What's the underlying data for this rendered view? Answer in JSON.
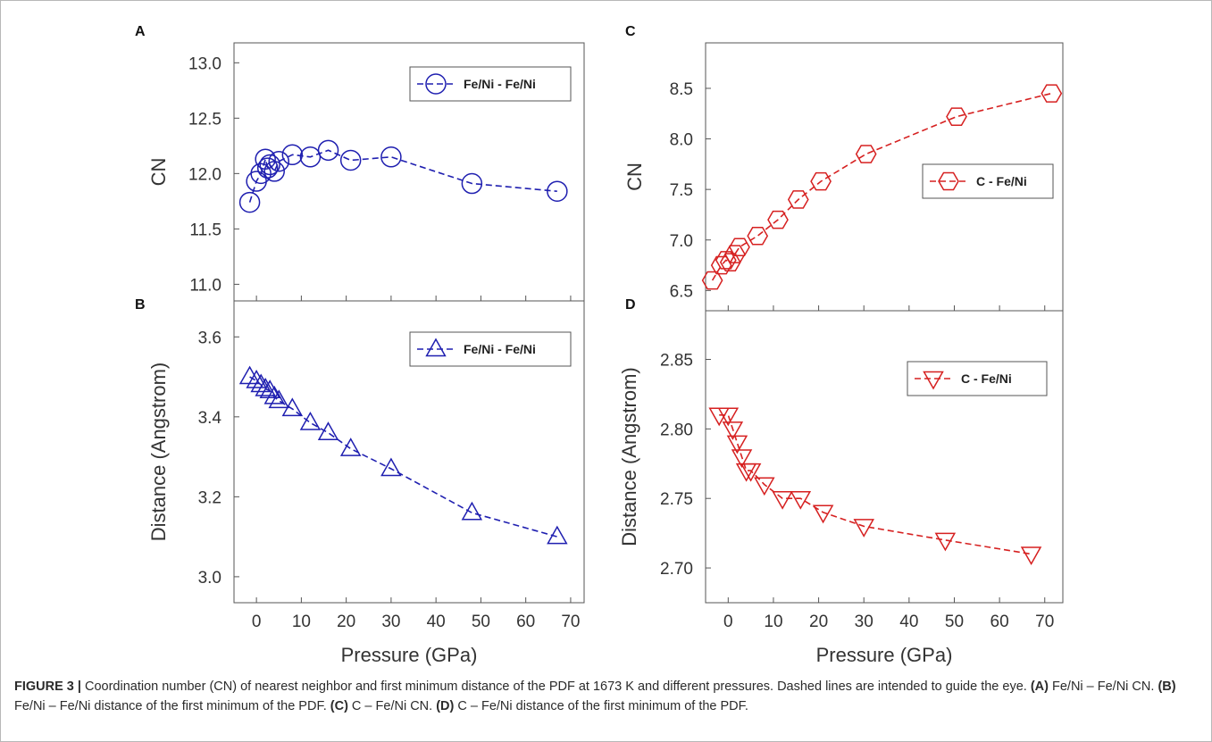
{
  "caption": {
    "label": "FIGURE 3 |",
    "segments": [
      {
        "bold": false,
        "text": " Coordination number (CN) of nearest neighbor and first minimum distance of the PDF at 1673 K and different pressures. Dashed lines are intended to guide the eye. "
      },
      {
        "bold": true,
        "text": "(A)"
      },
      {
        "bold": false,
        "text": " Fe/Ni – Fe/Ni CN. "
      },
      {
        "bold": true,
        "text": "(B)"
      },
      {
        "bold": false,
        "text": " Fe/Ni – Fe/Ni distance of the first minimum of the PDF. "
      },
      {
        "bold": true,
        "text": "(C)"
      },
      {
        "bold": false,
        "text": " C – Fe/Ni CN. "
      },
      {
        "bold": true,
        "text": "(D)"
      },
      {
        "bold": false,
        "text": " C – Fe/Ni distance of the first minimum of the PDF."
      }
    ]
  },
  "chart_data": [
    {
      "panel": "A",
      "type": "line",
      "marker": "circle",
      "color": "#1f1fb0",
      "xlim": [
        -5,
        73
      ],
      "ylim": [
        10.85,
        13.18
      ],
      "xticks": [
        0,
        10,
        20,
        30,
        40,
        50,
        60,
        70
      ],
      "yticks": [
        11.0,
        11.5,
        12.0,
        12.5,
        13.0
      ],
      "ytick_labels": [
        "11.0",
        "11.5",
        "12.0",
        "12.5",
        "13.0"
      ],
      "xlabel": "",
      "ylabel": "CN",
      "show_xticklabels": false,
      "legend": {
        "label": "Fe/Ni - Fe/Ni",
        "position": "top-right"
      },
      "series": [
        {
          "name": "Fe/Ni - Fe/Ni",
          "x": [
            -1.5,
            0,
            1,
            2,
            2.5,
            3,
            4,
            5,
            8,
            12,
            16,
            21,
            30,
            48,
            67
          ],
          "y": [
            11.74,
            11.93,
            12.0,
            12.13,
            12.05,
            12.08,
            12.02,
            12.11,
            12.17,
            12.15,
            12.21,
            12.12,
            12.15,
            11.91,
            11.84
          ]
        }
      ]
    },
    {
      "panel": "B",
      "type": "line",
      "marker": "triangle-up",
      "color": "#1f1fb0",
      "xlim": [
        -5,
        73
      ],
      "ylim": [
        2.935,
        3.69
      ],
      "xticks": [
        0,
        10,
        20,
        30,
        40,
        50,
        60,
        70
      ],
      "yticks": [
        3.0,
        3.2,
        3.4,
        3.6
      ],
      "ytick_labels": [
        "3.0",
        "3.2",
        "3.4",
        "3.6"
      ],
      "xlabel": "Pressure (GPa)",
      "ylabel": "Distance (Angstrom)",
      "show_xticklabels": true,
      "legend": {
        "label": "Fe/Ni - Fe/Ni",
        "position": "top-right"
      },
      "series": [
        {
          "name": "Fe/Ni - Fe/Ni",
          "x": [
            -1.5,
            0,
            1,
            2,
            3,
            4,
            5,
            8,
            12,
            16,
            21,
            30,
            48,
            67
          ],
          "y": [
            3.5,
            3.49,
            3.48,
            3.47,
            3.465,
            3.45,
            3.44,
            3.42,
            3.385,
            3.36,
            3.32,
            3.27,
            3.16,
            3.1
          ]
        }
      ]
    },
    {
      "panel": "C",
      "type": "line",
      "marker": "hexagon",
      "color": "#d62020",
      "xlim": [
        -5,
        74
      ],
      "ylim": [
        6.3,
        8.95
      ],
      "xticks": [
        0,
        10,
        20,
        30,
        40,
        50,
        60,
        70
      ],
      "yticks": [
        6.5,
        7.0,
        7.5,
        8.0,
        8.5
      ],
      "ytick_labels": [
        "6.5",
        "7.0",
        "7.5",
        "8.0",
        "8.5"
      ],
      "xlabel": "",
      "ylabel": "CN",
      "show_xticklabels": false,
      "legend": {
        "label": "C - Fe/Ni",
        "position": "center-right"
      },
      "series": [
        {
          "name": "C - Fe/Ni",
          "x": [
            -3.5,
            -1.5,
            -0.5,
            0.5,
            1.5,
            2.5,
            6.5,
            11,
            15.5,
            20.5,
            30.5,
            50.5,
            71.5
          ],
          "y": [
            6.6,
            6.75,
            6.8,
            6.78,
            6.86,
            6.93,
            7.04,
            7.2,
            7.4,
            7.58,
            7.85,
            8.22,
            8.45
          ]
        }
      ]
    },
    {
      "panel": "D",
      "type": "line",
      "marker": "triangle-down",
      "color": "#d62020",
      "xlim": [
        -5,
        74
      ],
      "ylim": [
        2.675,
        2.885
      ],
      "xticks": [
        0,
        10,
        20,
        30,
        40,
        50,
        60,
        70
      ],
      "yticks": [
        2.7,
        2.75,
        2.8,
        2.85
      ],
      "ytick_labels": [
        "2.70",
        "2.75",
        "2.80",
        "2.85"
      ],
      "xlabel": "Pressure (GPa)",
      "ylabel": "Distance (Angstrom)",
      "show_xticklabels": true,
      "legend": {
        "label": "C - Fe/Ni",
        "position": "top-right"
      },
      "series": [
        {
          "name": "C - Fe/Ni",
          "x": [
            -2,
            0,
            1,
            2,
            3,
            4,
            5,
            8,
            12,
            16,
            21,
            30,
            48,
            67
          ],
          "y": [
            2.81,
            2.81,
            2.8,
            2.79,
            2.78,
            2.77,
            2.77,
            2.76,
            2.75,
            2.75,
            2.74,
            2.73,
            2.72,
            2.71
          ]
        }
      ]
    }
  ]
}
